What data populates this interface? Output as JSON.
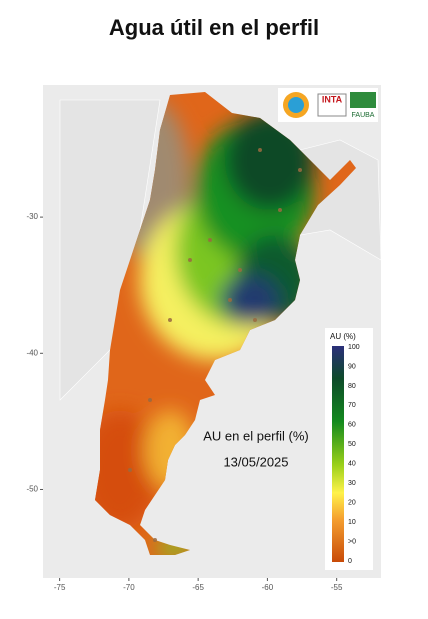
{
  "title": "Agua útil en el perfil",
  "logos": [
    "INTA",
    "FAUBA"
  ],
  "map": {
    "annotation": [
      "AU en el perfil (%)",
      "13/05/2025"
    ],
    "xlim": [
      -76.2,
      -51.8
    ],
    "ylim": [
      -56.5,
      -20.3
    ],
    "xticks": [
      -75,
      -70,
      -65,
      -60,
      -55
    ],
    "yticks": [
      -30,
      -40,
      -50
    ],
    "legend": {
      "title": "AU (%)",
      "labels": [
        "100",
        "90",
        "80",
        "70",
        "60",
        "50",
        "40",
        "30",
        "20",
        "10",
        ">0",
        "0"
      ]
    }
  }
}
